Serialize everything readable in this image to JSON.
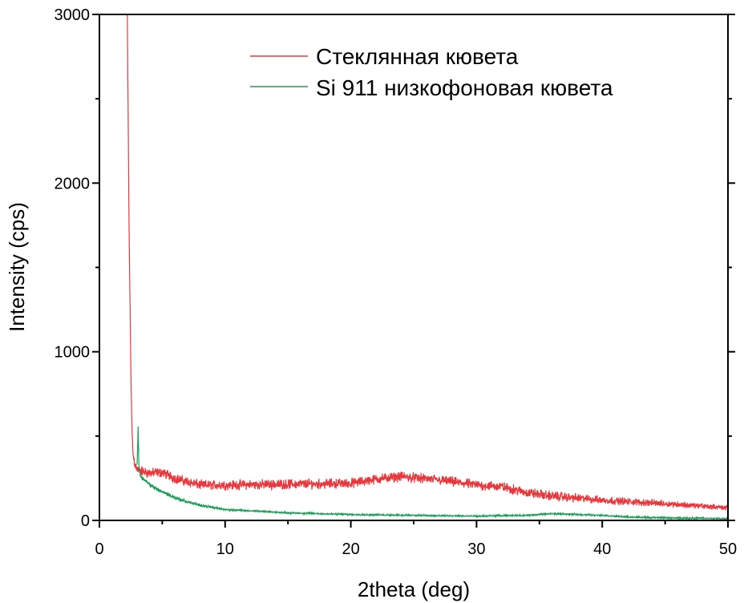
{
  "chart_data": {
    "type": "line",
    "title": "",
    "xlabel": "2theta (deg)",
    "ylabel": "Intensity (cps)",
    "xlim": [
      0,
      50
    ],
    "ylim": [
      0,
      3000
    ],
    "xticks": [
      "0",
      "10",
      "20",
      "30",
      "40",
      "50"
    ],
    "xtick_values": [
      0,
      10,
      20,
      30,
      40,
      50
    ],
    "yticks": [
      "0",
      "1000",
      "2000",
      "3000"
    ],
    "ytick_values": [
      0,
      1000,
      2000,
      3000
    ],
    "grid": false,
    "legend_position": "top-right",
    "series": [
      {
        "name": "Стеклянная кювета",
        "color": "#e8383d",
        "noise": 22,
        "points": [
          [
            2.2,
            3200
          ],
          [
            2.35,
            1800
          ],
          [
            2.5,
            900
          ],
          [
            2.6,
            500
          ],
          [
            2.7,
            380
          ],
          [
            2.85,
            330
          ],
          [
            3.0,
            300
          ],
          [
            4,
            280
          ],
          [
            5,
            285
          ],
          [
            6,
            250
          ],
          [
            8,
            210
          ],
          [
            10,
            210
          ],
          [
            15,
            215
          ],
          [
            20,
            220
          ],
          [
            22,
            245
          ],
          [
            24,
            260
          ],
          [
            27,
            240
          ],
          [
            30,
            210
          ],
          [
            32,
            200
          ],
          [
            34,
            165
          ],
          [
            36,
            145
          ],
          [
            40,
            120
          ],
          [
            45,
            100
          ],
          [
            50,
            75
          ]
        ]
      },
      {
        "name": "Si 911 низкофоновая кювета",
        "color": "#1e9e5a",
        "noise": 9,
        "points": [
          [
            3.0,
            330
          ],
          [
            3.08,
            560
          ],
          [
            3.15,
            300
          ],
          [
            3.3,
            260
          ],
          [
            4,
            210
          ],
          [
            5,
            170
          ],
          [
            6,
            135
          ],
          [
            7,
            110
          ],
          [
            8,
            90
          ],
          [
            10,
            65
          ],
          [
            15,
            45
          ],
          [
            20,
            35
          ],
          [
            25,
            30
          ],
          [
            30,
            25
          ],
          [
            34,
            30
          ],
          [
            36,
            40
          ],
          [
            38,
            35
          ],
          [
            40,
            30
          ],
          [
            42,
            20
          ],
          [
            45,
            15
          ],
          [
            50,
            10
          ]
        ]
      }
    ]
  }
}
